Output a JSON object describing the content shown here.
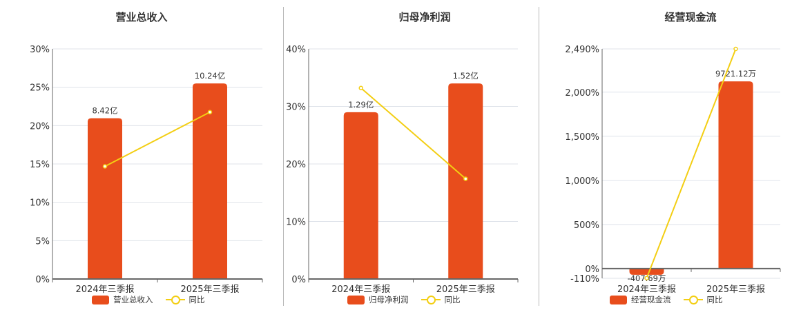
{
  "colors": {
    "bar": "#e84d1c",
    "line": "#f3ce13",
    "grid": "#dfe3ea",
    "axis": "#666666"
  },
  "legend": {
    "line_label": "同比"
  },
  "chart_data": [
    {
      "type": "bar",
      "title": "营业总收入",
      "categories": [
        "2024年三季报",
        "2025年三季报"
      ],
      "series": [
        {
          "name": "营业总收入",
          "kind": "bar",
          "labels": [
            "8.42亿",
            "10.24亿"
          ],
          "values": [
            20.96,
            25.5
          ]
        },
        {
          "name": "同比",
          "kind": "line",
          "values": [
            14.69,
            21.76
          ]
        }
      ],
      "ylim": [
        0,
        30
      ],
      "yticks": [
        0,
        5,
        10,
        15,
        20,
        25,
        30
      ],
      "ytick_labels": [
        "0%",
        "5%",
        "10%",
        "15%",
        "20%",
        "25%",
        "30%"
      ],
      "xlabel": "",
      "ylabel": "",
      "grid": true,
      "legend_position": "bottom"
    },
    {
      "type": "bar",
      "title": "归母净利润",
      "categories": [
        "2024年三季报",
        "2025年三季报"
      ],
      "series": [
        {
          "name": "归母净利润",
          "kind": "bar",
          "labels": [
            "1.29亿",
            "1.52亿"
          ],
          "values": [
            29.0,
            34.0
          ]
        },
        {
          "name": "同比",
          "kind": "line",
          "values": [
            33.2,
            17.43
          ]
        }
      ],
      "ylim": [
        0,
        40
      ],
      "yticks": [
        0,
        10,
        20,
        30,
        40
      ],
      "ytick_labels": [
        "0%",
        "10%",
        "20%",
        "30%",
        "40%"
      ],
      "xlabel": "",
      "ylabel": "",
      "grid": true,
      "legend_position": "bottom"
    },
    {
      "type": "bar",
      "title": "经营现金流",
      "categories": [
        "2024年三季报",
        "2025年三季报"
      ],
      "series": [
        {
          "name": "经营现金流",
          "kind": "bar",
          "labels": [
            "-407.69万",
            "9721.12万"
          ],
          "values": [
            -70,
            2122
          ]
        },
        {
          "name": "同比",
          "kind": "line",
          "values": [
            -108,
            2490
          ]
        }
      ],
      "ylim": [
        -110,
        2490
      ],
      "yticks": [
        -110,
        0,
        500,
        1000,
        1500,
        2000,
        2490
      ],
      "ytick_labels": [
        "-110%",
        "0%",
        "500%",
        "1,000%",
        "1,500%",
        "2,000%",
        "2,490%"
      ],
      "xlabel": "",
      "ylabel": "",
      "grid": true,
      "legend_position": "bottom"
    }
  ]
}
